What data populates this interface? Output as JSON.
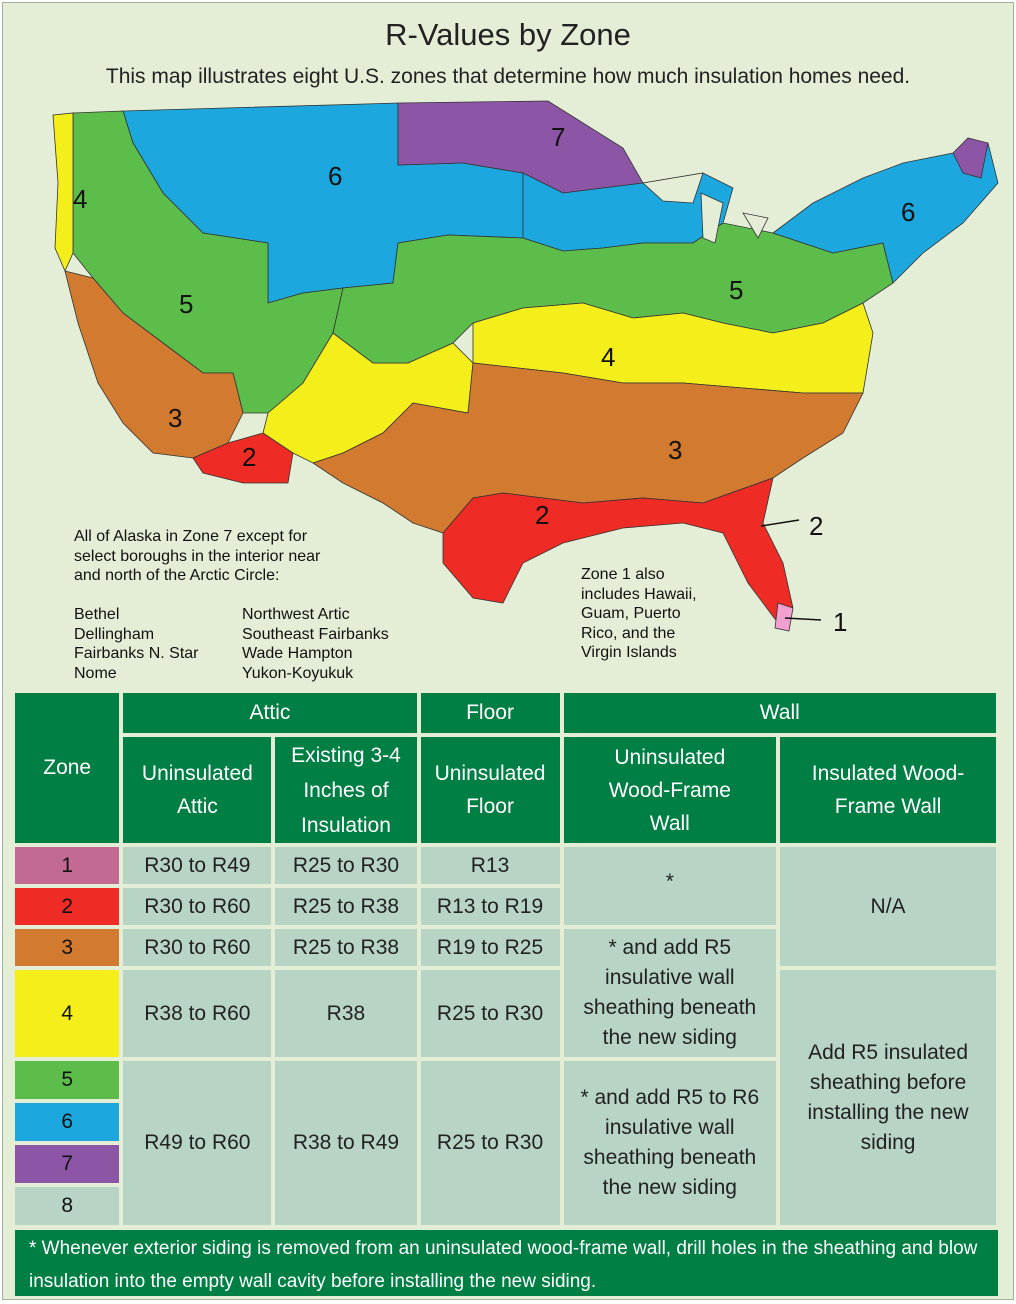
{
  "title": "R-Values by Zone",
  "subtitle": "This map illustrates eight U.S. zones that determine how much insulation homes need.",
  "colors": {
    "zone1": "#c26a92",
    "zone2": "#ee2b24",
    "zone3": "#d27a30",
    "zone4": "#f4ee1a",
    "zone5": "#5dbd4a",
    "zone6": "#1ca8de",
    "zone7": "#8d55a6",
    "zone8": "#b8d4c4",
    "header": "#007f45",
    "background": "#e4eed6"
  },
  "map": {
    "zone_labels": [
      "4",
      "6",
      "7",
      "6",
      "5",
      "5",
      "4",
      "3",
      "2",
      "3",
      "2",
      "2",
      "1"
    ],
    "alaska_note": "All of Alaska in Zone 7 except for\nselect boroughs in the interior near\nand north of the Arctic Circle:",
    "boroughs_col1": "Bethel\nDellingham\nFairbanks  N. Star\nNome",
    "boroughs_col2": "Northwest Artic\nSoutheast Fairbanks\nWade Hampton\nYukon-Koyukuk",
    "zone1_note": "Zone 1 also\nincludes Hawaii,\nGuam, Puerto\nRico, and the\nVirgin Islands"
  },
  "table": {
    "headers": {
      "zone": "Zone",
      "attic": "Attic",
      "floor": "Floor",
      "wall": "Wall",
      "uninsulated_attic": "Uninsulated Attic",
      "existing": "Existing 3-4 Inches of Insulation",
      "uninsulated_floor": "Uninsulated Floor",
      "uninsulated_wall": "Uninsulated Wood-Frame Wall",
      "insulated_wall": "Insulated Wood-Frame Wall"
    },
    "zones": [
      "1",
      "2",
      "3",
      "4",
      "5",
      "6",
      "7",
      "8"
    ],
    "attic_uninsulated": [
      "R30 to R49",
      "R30 to R60",
      "R30 to R60",
      "R38 to R60",
      "R49 to R60"
    ],
    "attic_existing": [
      "R25 to R30",
      "R25 to R38",
      "R25 to R38",
      "R38",
      "R38 to R49"
    ],
    "floor": [
      "R13",
      "R13 to R19",
      "R19 to R25",
      "R25 to R30",
      "R25 to R30"
    ],
    "wall_uninsulated": [
      "*",
      "*  and add R5 insulative wall sheathing beneath the new siding",
      "*  and add R5 to R6 insulative wall sheathing beneath the new siding"
    ],
    "wall_insulated": [
      "N/A",
      "Add R5 insulated sheathing before installing the new siding"
    ]
  },
  "footnote": "* Whenever exterior siding is removed from an uninsulated wood-frame wall, drill holes in the sheathing and blow insulation into the empty wall cavity before installing the new siding."
}
